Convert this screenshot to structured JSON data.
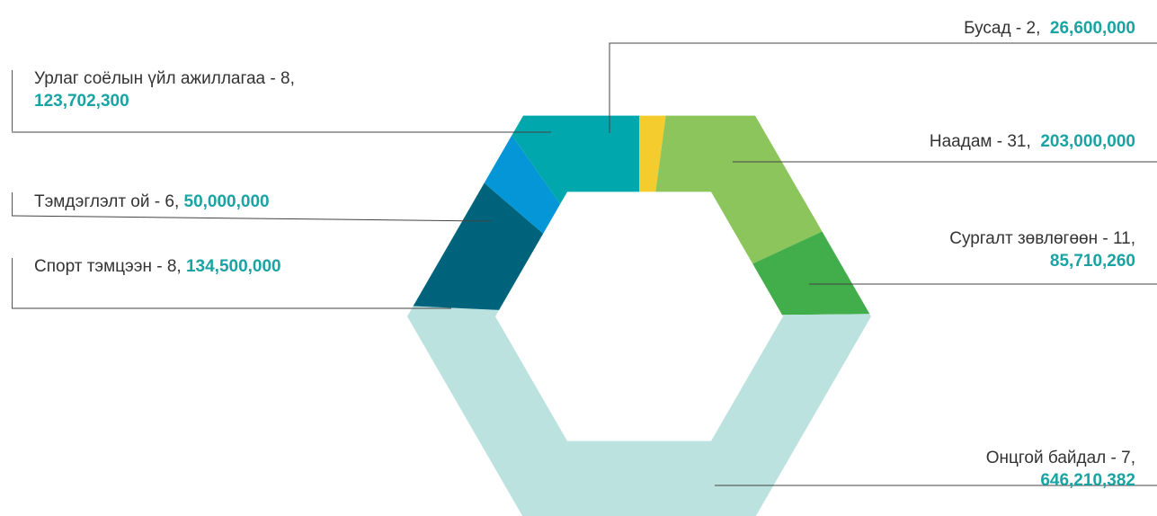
{
  "chart_data": {
    "type": "pie",
    "style": "hexagonal donut",
    "value_color": "#1aa3a3",
    "slices": [
      {
        "name": "Бусад",
        "count": "2",
        "value": 26600000,
        "value_label": "26,600,000",
        "color": "#f5cc2e"
      },
      {
        "name": "Наадам",
        "count": "31",
        "value": 203000000,
        "value_label": "203,000,000",
        "color": "#8bc55c"
      },
      {
        "name": "Сургалт зөвлөгөөн",
        "count": "11",
        "value": 85710260,
        "value_label": "85,710,260",
        "color": "#42ae4b"
      },
      {
        "name": "Онцгой байдал",
        "count": "7",
        "value": 646210382,
        "value_label": "646,210,382",
        "color": "#bbe2df"
      },
      {
        "name": "Спорт тэмцээн",
        "count": "8",
        "value": 134500000,
        "value_label": "134,500,000",
        "color": "#00637c"
      },
      {
        "name": "Тэмдэглэлт ой",
        "count": "6",
        "value": 50000000,
        "value_label": "50,000,000",
        "color": "#0496d6"
      },
      {
        "name": "Урлаг соёлын үйл ажиллагаа",
        "count": "8",
        "value": 123702300,
        "value_label": "123,702,300",
        "color": "#00a7ad"
      }
    ]
  }
}
